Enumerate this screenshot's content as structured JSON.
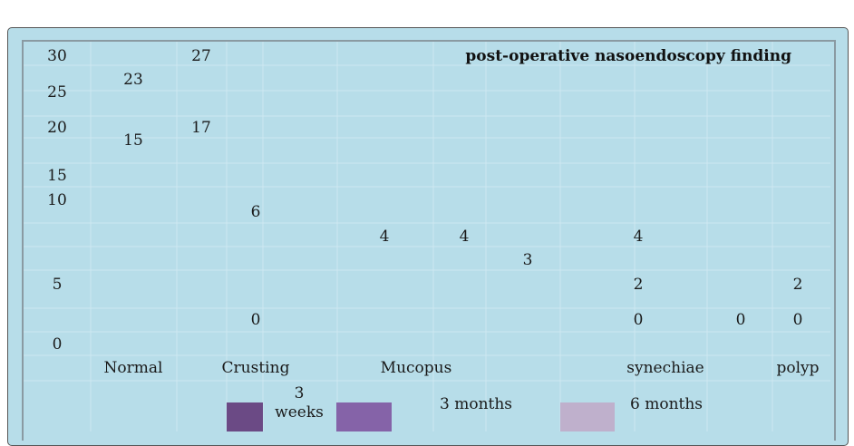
{
  "chart_data": {
    "type": "table",
    "title": "post-operative nasoendoscopy finding",
    "y_ticks": [
      "30",
      "25",
      "20",
      "15",
      "10",
      "5",
      "0"
    ],
    "categories": [
      "Normal",
      "Crusting",
      "Mucopus",
      "synechiae",
      "polyp"
    ],
    "series": [
      {
        "name": "3 weeks",
        "color": "#6b4a85",
        "values": [
          23,
          6,
          4,
          4,
          0
        ]
      },
      {
        "name": "3 months",
        "color": "#8563a8",
        "values": [
          27,
          0,
          4,
          2,
          0
        ]
      },
      {
        "name": "6 months",
        "color": "#bfb0cc",
        "values": [
          15,
          17,
          3,
          0,
          2
        ]
      }
    ],
    "legend": {
      "placement": "bottom"
    }
  }
}
